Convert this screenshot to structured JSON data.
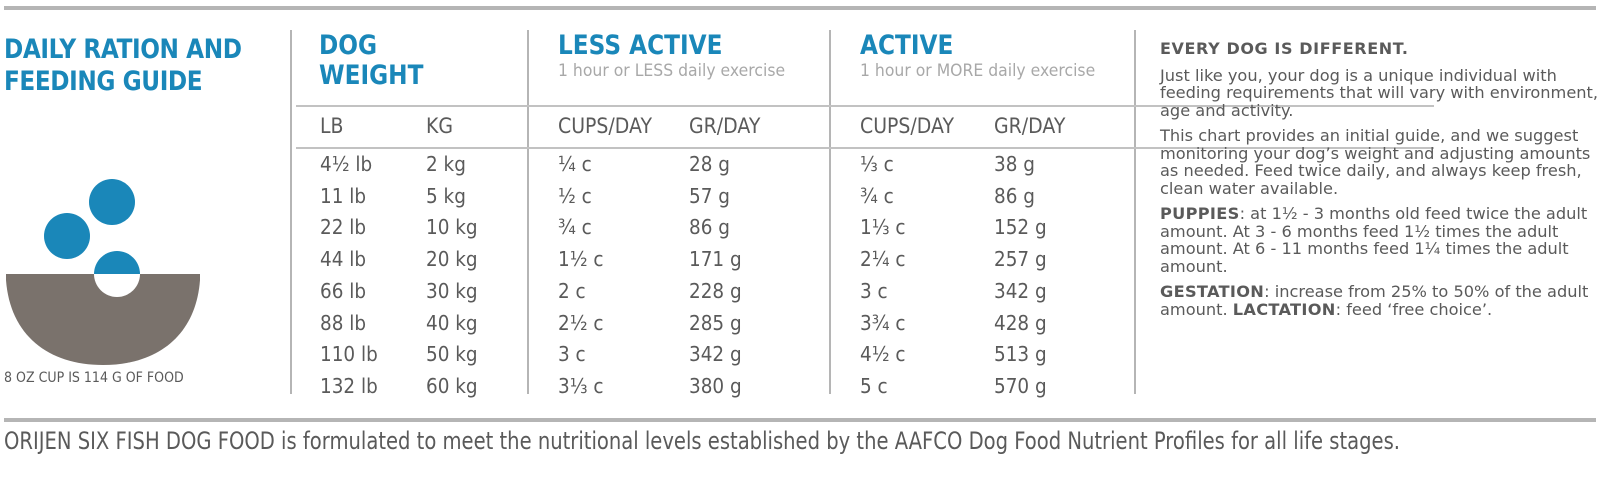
{
  "title": {
    "line1": "DAILY RATION AND",
    "line2": "FEEDING GUIDE"
  },
  "cup_note": "8 OZ CUP IS 114 G OF FOOD",
  "colors": {
    "accent": "#1a87b9",
    "bowl": "#7a726c",
    "text": "#5a5a5a",
    "rule": "#b5b5b5"
  },
  "icons": {
    "illustration": "food-bowl-icon"
  },
  "headers": {
    "dog_weight": {
      "line1": "DOG",
      "line2": "WEIGHT"
    },
    "less_active": {
      "title": "LESS ACTIVE",
      "subtitle": "1 hour or LESS daily exercise"
    },
    "active": {
      "title": "ACTIVE",
      "subtitle": "1 hour or MORE daily exercise"
    }
  },
  "columns": [
    "LB",
    "KG",
    "CUPS/DAY",
    "GR/DAY",
    "CUPS/DAY",
    "GR/DAY"
  ],
  "rows": [
    [
      "4½ lb",
      "2 kg",
      "¼ c",
      "28 g",
      "⅓ c",
      "38 g"
    ],
    [
      "11 lb",
      "5 kg",
      "½ c",
      "57 g",
      "¾ c",
      "86 g"
    ],
    [
      "22 lb",
      "10 kg",
      "¾ c",
      "86 g",
      "1⅓ c",
      "152 g"
    ],
    [
      "44 lb",
      "20 kg",
      "1½ c",
      "171 g",
      "2¼ c",
      "257 g"
    ],
    [
      "66 lb",
      "30 kg",
      "2 c",
      "228 g",
      "3 c",
      "342 g"
    ],
    [
      "88 lb",
      "40 kg",
      "2½ c",
      "285 g",
      "3¾ c",
      "428 g"
    ],
    [
      "110 lb",
      "50 kg",
      "3 c",
      "342 g",
      "4½ c",
      "513 g"
    ],
    [
      "132 lb",
      "60 kg",
      "3⅓ c",
      "380 g",
      "5 c",
      "570 g"
    ]
  ],
  "side": {
    "heading": "EVERY DOG IS DIFFERENT.",
    "p1": "Just like you, your dog is a unique individual with feeding requirements that will vary with environment, age and activity.",
    "p2": "This chart provides an initial guide, and we suggest monitoring your dog’s weight and adjusting amounts as needed. Feed twice daily, and always keep fresh, clean water available.",
    "puppies_label": "PUPPIES",
    "puppies_text": ": at 1½ - 3 months old feed twice the adult amount. At 3 - 6 months feed 1½ times the adult amount. At 6 - 11 months feed 1¼ times the adult amount.",
    "gestation_label": "GESTATION",
    "gestation_text": ": increase from 25% to 50% of the adult amount. ",
    "lactation_label": "LACTATION",
    "lactation_text": ": feed ‘free choice’."
  },
  "footer": "ORIJEN SIX FISH DOG FOOD is formulated to meet the nutritional levels established by the AAFCO Dog Food Nutrient Profiles for all life stages."
}
